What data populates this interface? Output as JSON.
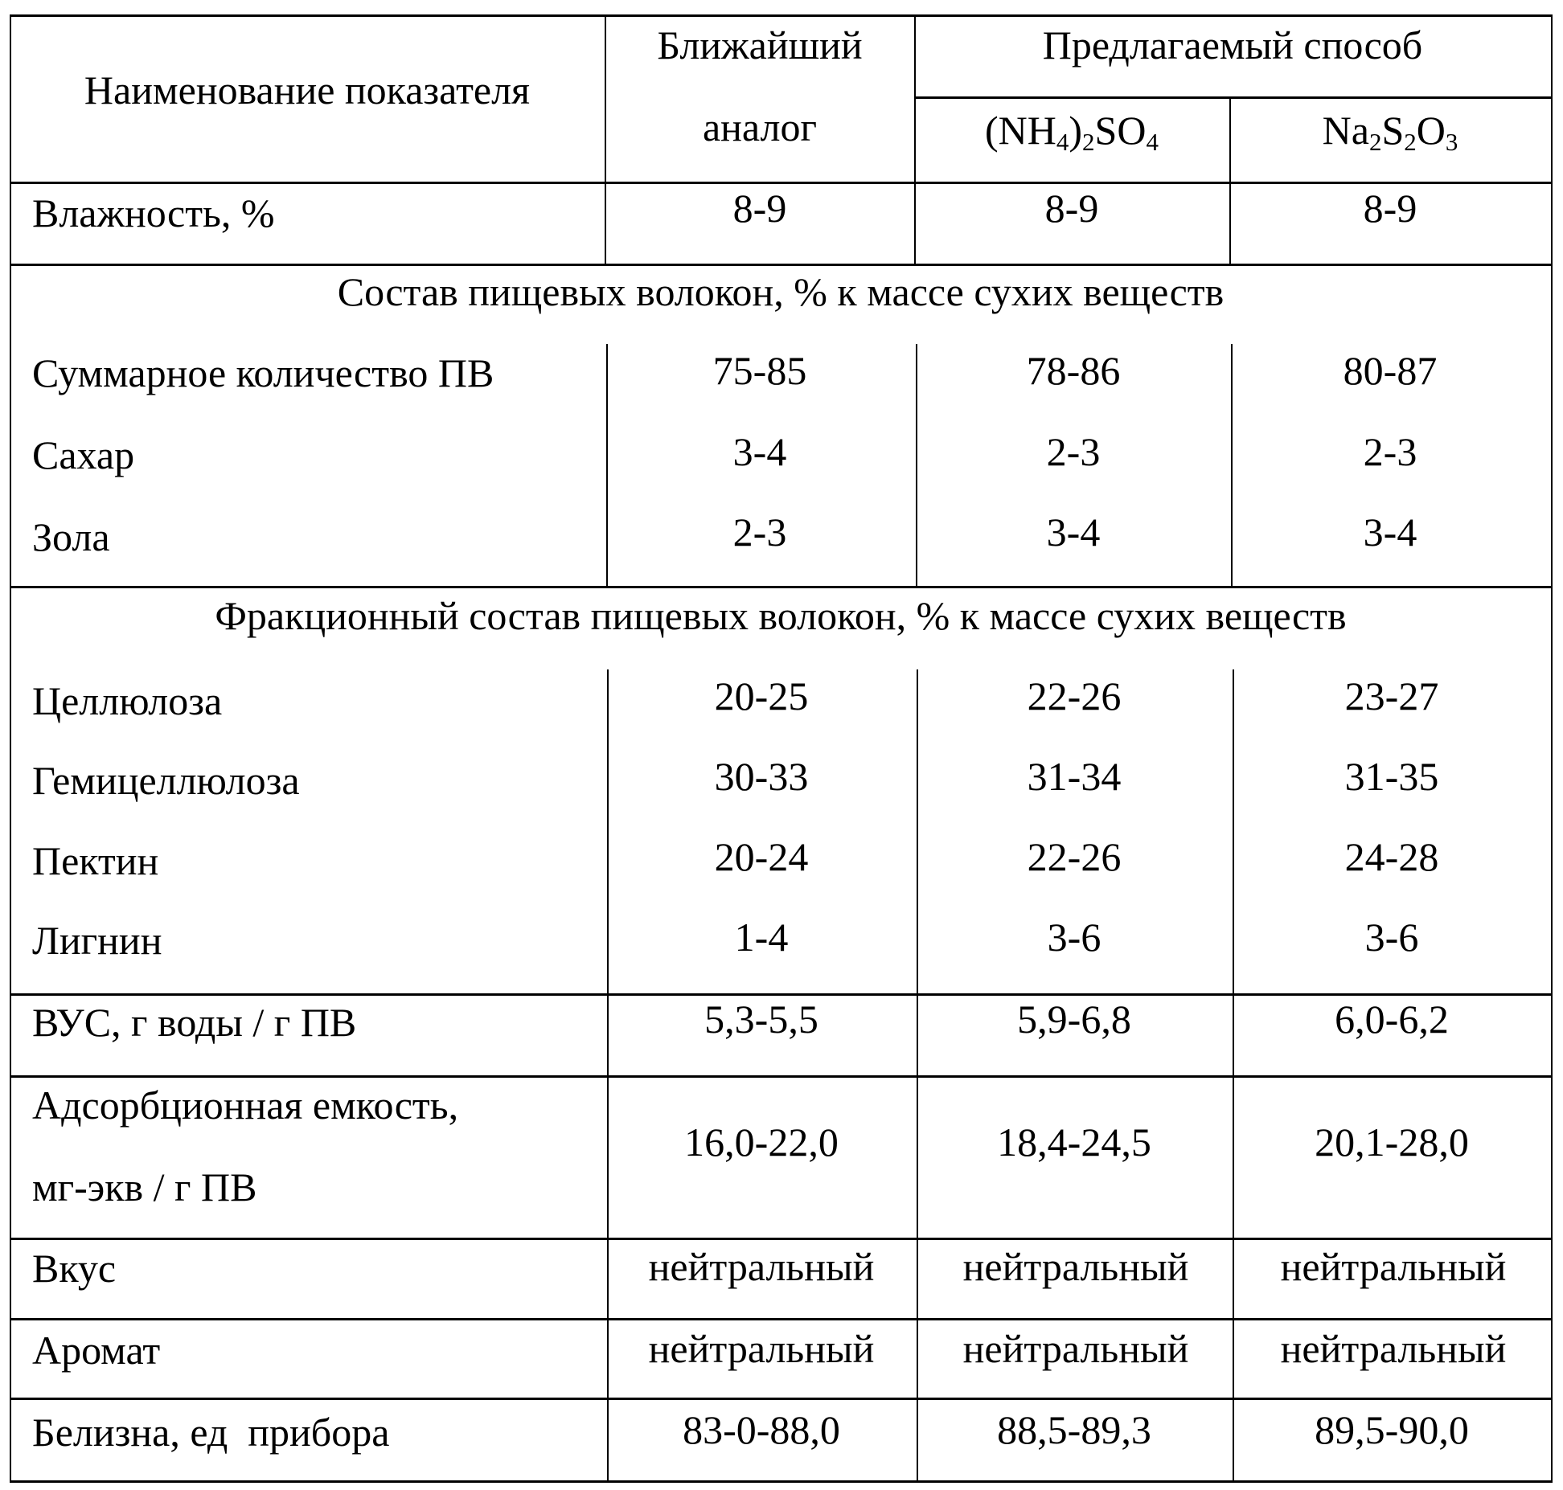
{
  "header": {
    "col_name": "Наименование показателя",
    "analog_line1": "Ближайший",
    "analog_line2": "аналог",
    "proposed": "Предлагаемый способ",
    "reagent1": {
      "a": "(NH",
      "s1": "4",
      "b": ")",
      "s2": "2",
      "c": "SO",
      "s3": "4"
    },
    "reagent2": {
      "a": "Na",
      "s1": "2",
      "b": "S",
      "s2": "2",
      "c": "O",
      "s3": "3"
    }
  },
  "rows": {
    "moisture": {
      "label": "Влажность, %",
      "values": [
        "8-9",
        "8-9",
        "8-9"
      ]
    },
    "section1": "Состав пищевых волокон, % к массе сухих веществ",
    "total": {
      "label": "Суммарное количество ПВ",
      "values": [
        "75-85",
        "78-86",
        "80-87"
      ]
    },
    "sugar": {
      "label": "Сахар",
      "values": [
        "3-4",
        "2-3",
        "2-3"
      ]
    },
    "ash": {
      "label": "Зола",
      "values": [
        "2-3",
        "3-4",
        "3-4"
      ]
    },
    "section2": "Фракционный состав пищевых волокон, % к массе сухих веществ",
    "cellulose": {
      "label": "Целлюлоза",
      "values": [
        "20-25",
        "22-26",
        "23-27"
      ]
    },
    "hemicellulose": {
      "label": "Гемицеллюлоза",
      "values": [
        "30-33",
        "31-34",
        "31-35"
      ]
    },
    "pectin": {
      "label": "Пектин",
      "values": [
        "20-24",
        "22-26",
        "24-28"
      ]
    },
    "lignin": {
      "label": "Лигнин",
      "values": [
        "1-4",
        "3-6",
        "3-6"
      ]
    },
    "wrc": {
      "label": "ВУС, г воды / г ПВ",
      "values": [
        "5,3-5,5",
        "5,9-6,8",
        "6,0-6,2"
      ]
    },
    "adsorption": {
      "label_line1": "Адсорбционная емкость,",
      "label_line2": "мг-экв / г ПВ",
      "values": [
        "16,0-22,0",
        "18,4-24,5",
        "20,1-28,0"
      ]
    },
    "taste": {
      "label": "Вкус",
      "values": [
        "нейтральный",
        "нейтральный",
        "нейтральный"
      ]
    },
    "aroma": {
      "label": "Аромат",
      "values": [
        "нейтральный",
        "нейтральный",
        "нейтральный"
      ]
    },
    "whiteness": {
      "label": "Белизна, ед  прибора",
      "values": [
        "83-0-88,0",
        "88,5-89,3",
        "89,5-90,0"
      ]
    }
  }
}
